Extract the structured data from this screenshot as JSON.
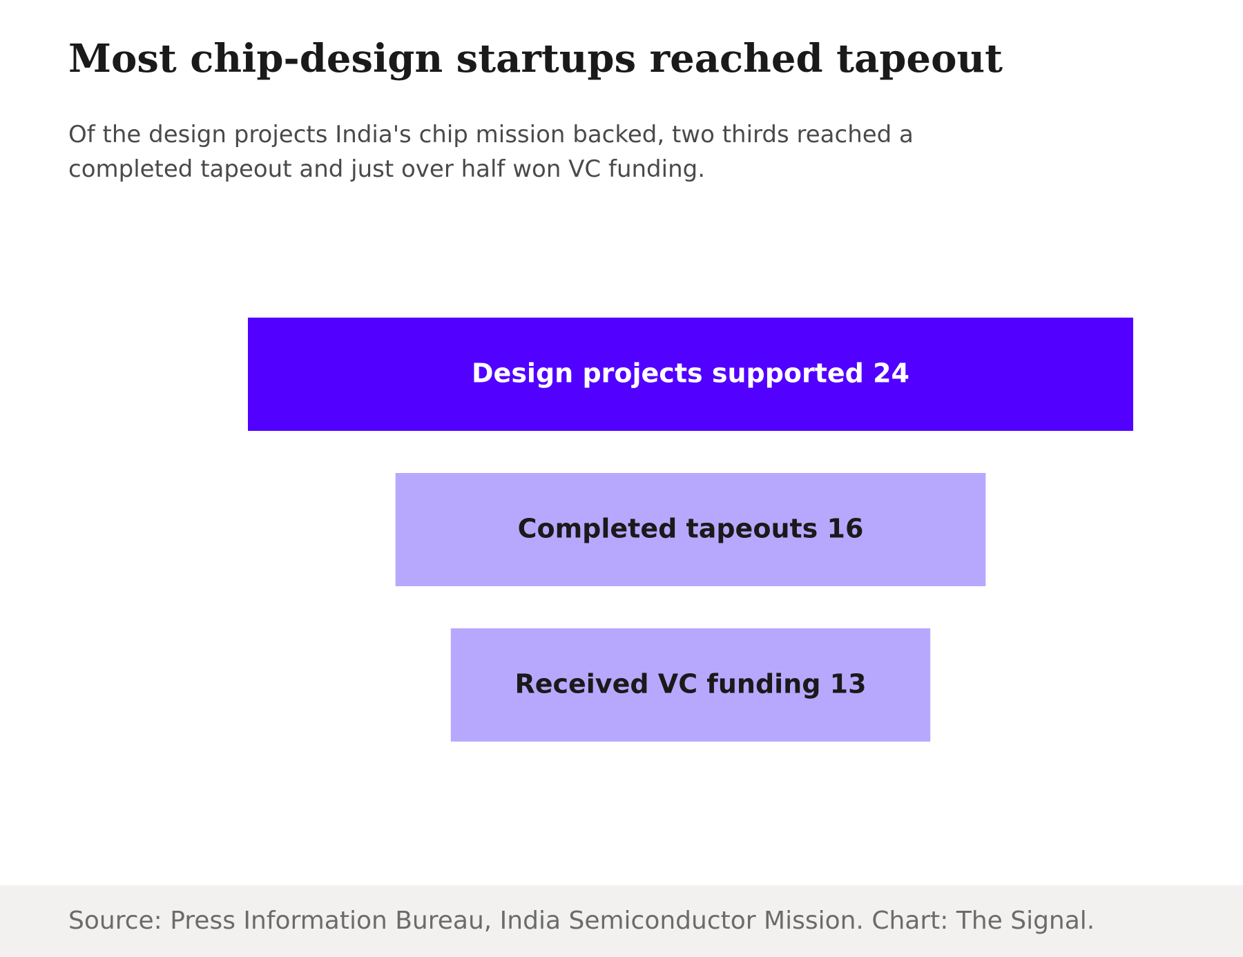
{
  "title": "Most chip-design startups reached tapeout",
  "subtitle": "Of the design projects India's chip mission backed, two thirds reached a completed tapeout and just over half won VC funding.",
  "source": "Source: Press Information Bureau, India Semiconductor Mission. Chart: The Signal.",
  "colors": {
    "primary": "#5200ff",
    "secondary": "#b8a8fd",
    "label_on_primary": "#ffffff",
    "label_on_secondary": "#1a1a1a"
  },
  "chart_data": {
    "type": "funnel",
    "categories": [
      "Design projects supported",
      "Completed tapeouts",
      "Received VC funding"
    ],
    "values": [
      24,
      16,
      13
    ],
    "title": "Most chip-design startups reached tapeout",
    "xlabel": "",
    "ylabel": ""
  }
}
